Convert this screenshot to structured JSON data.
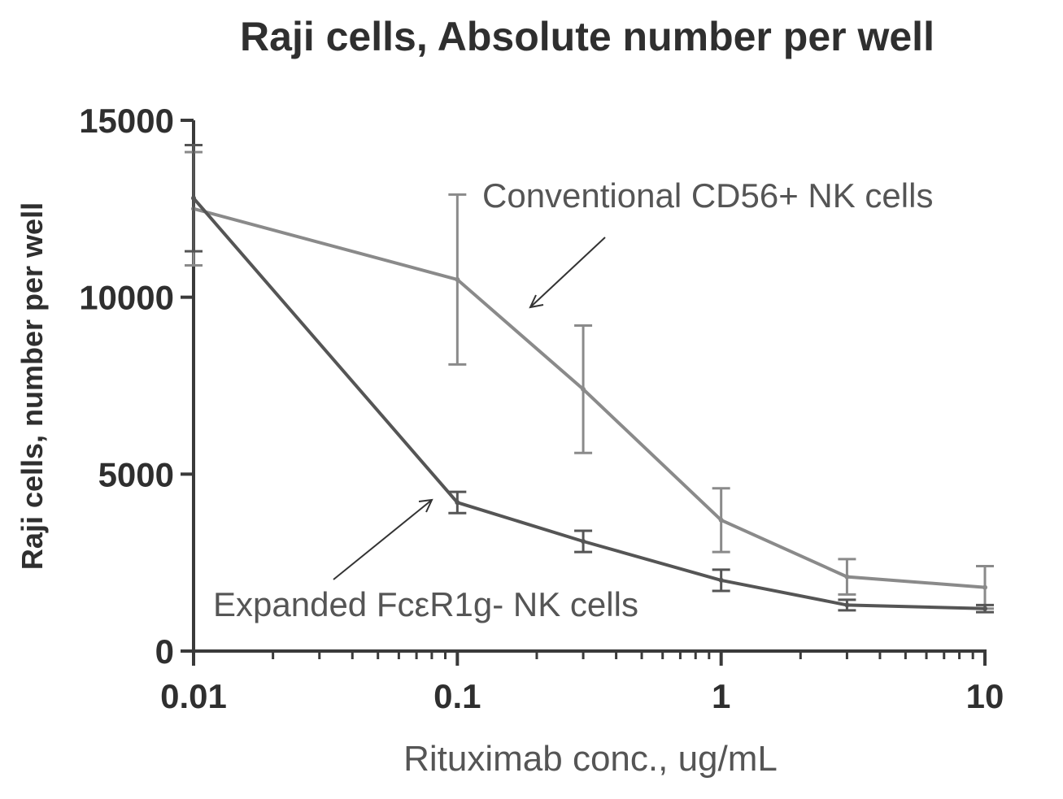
{
  "chart_data": {
    "type": "line",
    "title": "Raji cells, Absolute number per well",
    "xlabel": "Rituximab conc., ug/mL",
    "ylabel": "Raji cells, number per well",
    "xscale": "log",
    "xlim": [
      0.01,
      10
    ],
    "ylim": [
      0,
      15000
    ],
    "x_ticks": [
      0.01,
      0.1,
      1,
      10
    ],
    "x_tick_labels": [
      "0.01",
      "0.1",
      "1",
      "10"
    ],
    "y_ticks": [
      0,
      5000,
      10000,
      15000
    ],
    "y_tick_labels": [
      "0",
      "5000",
      "10000",
      "15000"
    ],
    "grid": false,
    "legend": "none",
    "series": [
      {
        "name": "Conventional CD56+ NK cells",
        "color": "#8a8a8a",
        "x": [
          0.01,
          0.1,
          0.3,
          1,
          3,
          10
        ],
        "y": [
          12500,
          10500,
          7400,
          3700,
          2100,
          1800
        ],
        "err": [
          1600,
          2400,
          1800,
          900,
          500,
          600
        ]
      },
      {
        "name": "Expanded FcεR1g- NK cells",
        "color": "#555555",
        "x": [
          0.01,
          0.1,
          0.3,
          1,
          3,
          10
        ],
        "y": [
          12800,
          4200,
          3100,
          2000,
          1300,
          1200
        ],
        "err": [
          1500,
          300,
          300,
          300,
          150,
          100
        ]
      }
    ],
    "annotations": [
      {
        "text": "Conventional CD56+ NK cells",
        "points_to_series": 0
      },
      {
        "text": "Expanded FcεR1g- NK cells",
        "points_to_series": 1
      }
    ]
  }
}
